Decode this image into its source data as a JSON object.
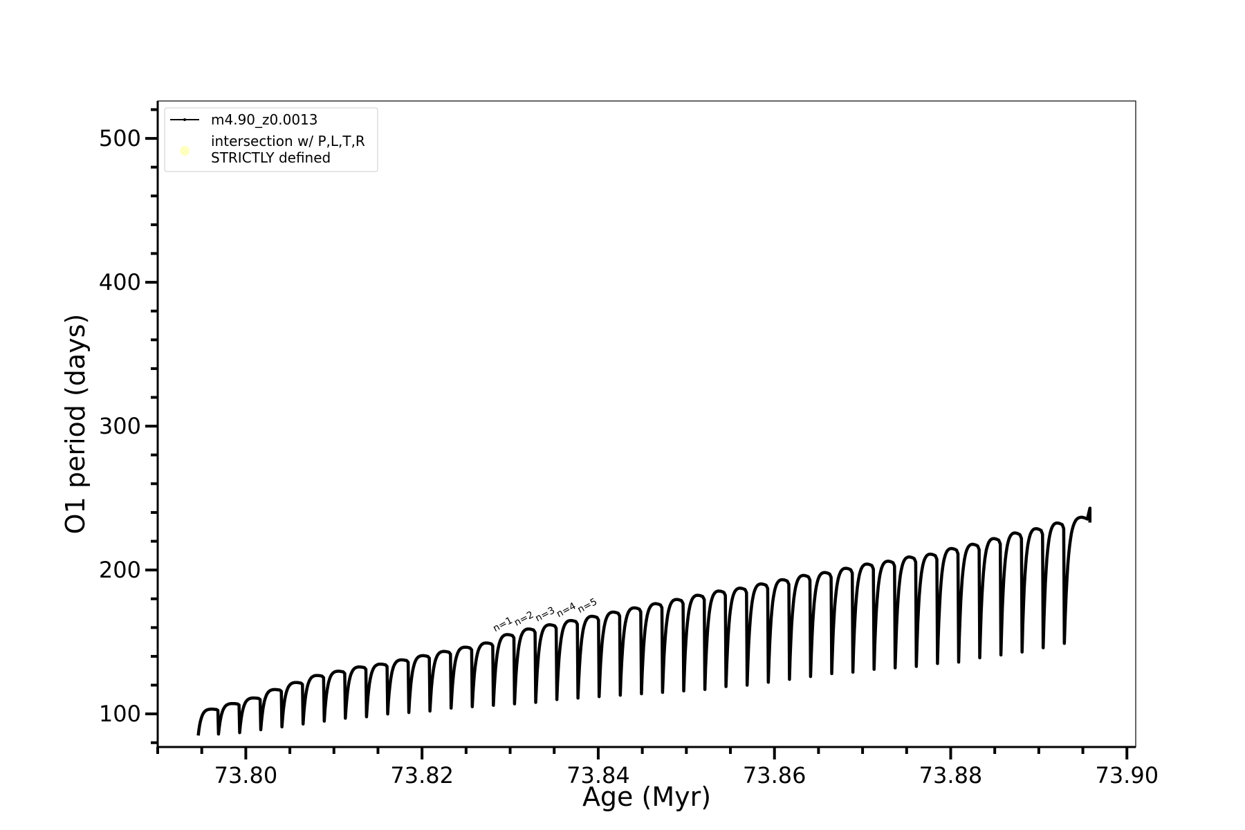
{
  "chart_data": {
    "type": "line",
    "xlabel": "Age (Myr)",
    "ylabel": "O1 period (days)",
    "xlim": [
      73.79,
      73.901
    ],
    "ylim": [
      77,
      526
    ],
    "xticks": [
      73.8,
      73.82,
      73.84,
      73.86,
      73.88,
      73.9
    ],
    "xtick_labels": [
      "73.80",
      "73.82",
      "73.84",
      "73.86",
      "73.88",
      "73.90"
    ],
    "xminor_step": 0.005,
    "yticks": [
      100,
      200,
      300,
      400,
      500
    ],
    "ytick_labels": [
      "100",
      "200",
      "300",
      "400",
      "500"
    ],
    "yminor_step": 20,
    "grid": false,
    "legend_position": "upper-left",
    "legend": [
      {
        "label": "m4.90_z0.0013",
        "marker": "line-dot",
        "color": "#000000"
      },
      {
        "label": "intersection w/ P,L,T,R\nSTRICTLY defined",
        "marker": "circle",
        "color": "#ffffc0"
      }
    ],
    "annotations": [
      {
        "text": "n=1",
        "x": 73.8283,
        "y": 157
      },
      {
        "text": "n=2",
        "x": 73.8307,
        "y": 161
      },
      {
        "text": "n=3",
        "x": 73.8331,
        "y": 164
      },
      {
        "text": "n=4",
        "x": 73.8355,
        "y": 167
      },
      {
        "text": "n=5",
        "x": 73.8379,
        "y": 170
      }
    ],
    "series": [
      {
        "name": "m4.90_z0.0013",
        "color": "#000000",
        "cycle_start_age": [
          73.7946,
          73.7969,
          73.7993,
          73.8017,
          73.8041,
          73.8065,
          73.8089,
          73.8113,
          73.8137,
          73.8161,
          73.8185,
          73.8209,
          73.8233,
          73.8257,
          73.8281,
          73.8305,
          73.8329,
          73.8353,
          73.8377,
          73.8401,
          73.8425,
          73.8449,
          73.8473,
          73.8497,
          73.8521,
          73.8545,
          73.8569,
          73.8593,
          73.8617,
          73.8641,
          73.8665,
          73.8689,
          73.8713,
          73.8737,
          73.8761,
          73.8785,
          73.8809,
          73.8833,
          73.8857,
          73.8881,
          73.8905,
          73.8929
        ],
        "cycle_min_period": [
          85,
          86,
          87,
          89,
          91,
          93,
          95,
          97,
          98,
          100,
          101,
          102,
          104,
          105,
          106,
          107,
          108,
          110,
          111,
          112,
          113,
          114,
          115,
          116,
          117,
          119,
          120,
          122,
          124,
          126,
          128,
          129,
          131,
          132,
          133,
          135,
          136,
          139,
          141,
          143,
          146,
          149
        ],
        "cycle_max_period": [
          104,
          108,
          112,
          118,
          123,
          128,
          131,
          134,
          136,
          139,
          142,
          145,
          148,
          151,
          157,
          161,
          164,
          167,
          170,
          173,
          176,
          179,
          182,
          185,
          188,
          190,
          193,
          196,
          199,
          201,
          204,
          207,
          209,
          212,
          214,
          218,
          221,
          225,
          229,
          232,
          236,
          240
        ],
        "end": {
          "x": 73.8958,
          "y": 243
        }
      }
    ]
  }
}
